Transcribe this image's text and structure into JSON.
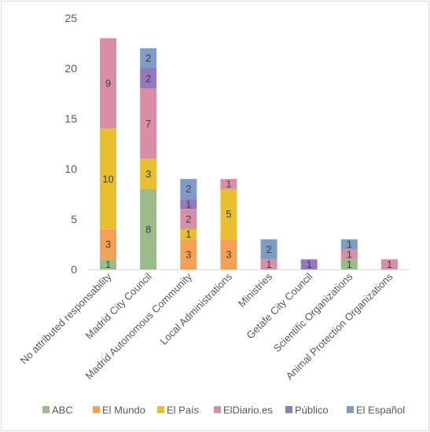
{
  "chart_data": {
    "type": "bar",
    "stacked": true,
    "title": "",
    "xlabel": "",
    "ylabel": "",
    "ylim": [
      0,
      25
    ],
    "yticks": [
      0,
      5,
      10,
      15,
      20,
      25
    ],
    "grid": false,
    "legend_position": "bottom",
    "categories": [
      "No attributed responsability",
      "Madrid City Council",
      "Madrid Autonomous Community",
      "Local Administrations",
      "Ministries",
      "Getafe City Council",
      "Scientific Organizations",
      "Animal Protection Organizations"
    ],
    "series": [
      {
        "name": "ABC",
        "color": "#9bbb8a",
        "values": [
          1,
          8,
          0,
          0,
          0,
          0,
          1,
          0
        ]
      },
      {
        "name": "El Mundo",
        "color": "#f4a155",
        "values": [
          3,
          0,
          3,
          3,
          0,
          0,
          0,
          0
        ]
      },
      {
        "name": "El País",
        "color": "#e8bf2e",
        "values": [
          10,
          3,
          1,
          5,
          0,
          0,
          0,
          0
        ]
      },
      {
        "name": "ElDiario.es",
        "color": "#d88fa6",
        "values": [
          9,
          7,
          2,
          1,
          1,
          0,
          1,
          1
        ]
      },
      {
        "name": "Público",
        "color": "#9478c1",
        "values": [
          0,
          2,
          1,
          0,
          0,
          1,
          0,
          0
        ]
      },
      {
        "name": "El Español",
        "color": "#7e9cc5",
        "values": [
          0,
          2,
          2,
          0,
          2,
          0,
          1,
          0
        ]
      }
    ]
  }
}
